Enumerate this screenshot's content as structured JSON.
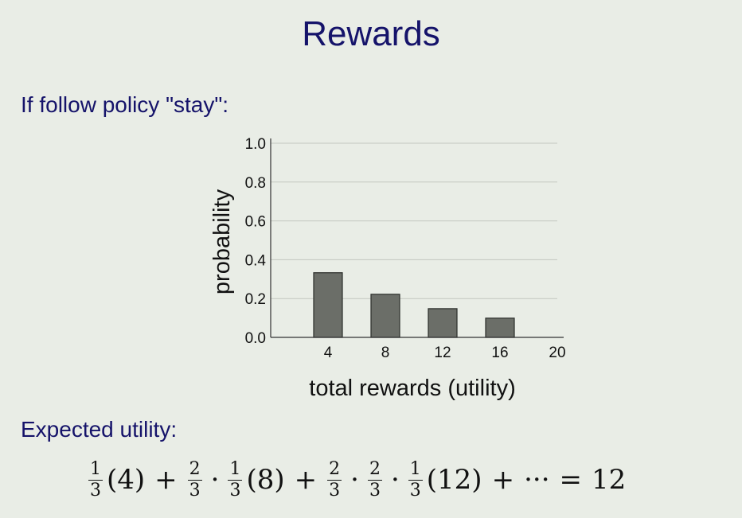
{
  "slide": {
    "title": "Rewards",
    "subhead_policy": "If follow policy \"stay\":",
    "subhead_expected": "Expected utility:"
  },
  "chart_data": {
    "type": "bar",
    "x": [
      4,
      8,
      12,
      16,
      20
    ],
    "values": [
      0.333,
      0.222,
      0.148,
      0.099,
      0.0
    ],
    "xlabel": "total rewards (utility)",
    "ylabel": "probability",
    "xticks": [
      "4",
      "8",
      "12",
      "16",
      "20"
    ],
    "yticks": [
      "0.0",
      "0.2",
      "0.4",
      "0.6",
      "0.8",
      "1.0"
    ],
    "ylim": [
      0,
      1.0
    ],
    "grid": true,
    "bar_color": "#6b6e68"
  },
  "formula": {
    "one": "1",
    "two": "2",
    "three": "3",
    "term1": "(4)",
    "term2": "(8)",
    "term3": "(12)",
    "plus": "+",
    "cdot": "·",
    "ellipsis": "···",
    "equals": "=",
    "result": "12"
  }
}
